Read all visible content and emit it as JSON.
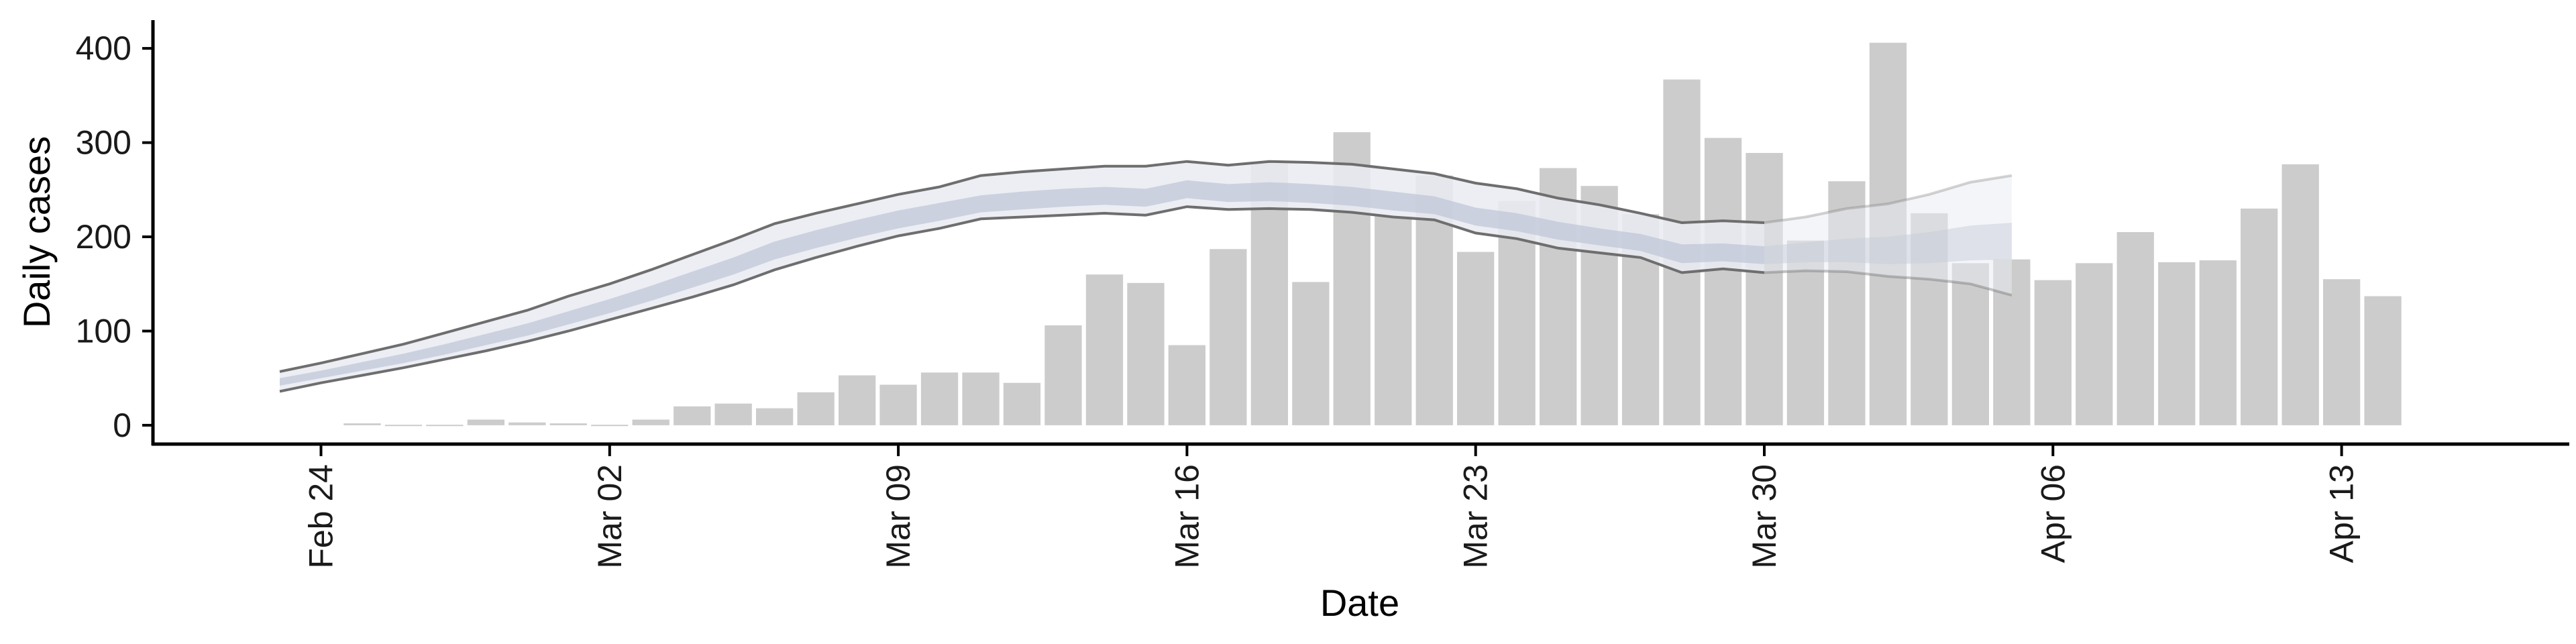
{
  "chart_data": {
    "type": "bar",
    "title": "",
    "xlabel": "Date",
    "ylabel": "Daily cases",
    "ylim": [
      -20,
      430
    ],
    "yticks": [
      0,
      100,
      200,
      300,
      400
    ],
    "x_start_label": "Feb 23",
    "x_end_label": "Apr 18",
    "xticks": [
      {
        "date": "Feb 24",
        "label": "Feb 24"
      },
      {
        "date": "Mar 02",
        "label": "Mar 02"
      },
      {
        "date": "Mar 09",
        "label": "Mar 09"
      },
      {
        "date": "Mar 16",
        "label": "Mar 16"
      },
      {
        "date": "Mar 23",
        "label": "Mar 23"
      },
      {
        "date": "Mar 30",
        "label": "Mar 30"
      },
      {
        "date": "Apr 06",
        "label": "Apr 06"
      },
      {
        "date": "Apr 13",
        "label": "Apr 13"
      }
    ],
    "bars": {
      "color": "#cccccc",
      "dates": [
        "Feb 25",
        "Feb 26",
        "Feb 27",
        "Feb 28",
        "Feb 29",
        "Mar 01",
        "Mar 02",
        "Mar 03",
        "Mar 04",
        "Mar 05",
        "Mar 06",
        "Mar 07",
        "Mar 08",
        "Mar 09",
        "Mar 10",
        "Mar 11",
        "Mar 12",
        "Mar 13",
        "Mar 14",
        "Mar 15",
        "Mar 16",
        "Mar 17",
        "Mar 18",
        "Mar 19",
        "Mar 20",
        "Mar 21",
        "Mar 22",
        "Mar 23",
        "Mar 24",
        "Mar 25",
        "Mar 26",
        "Mar 27",
        "Mar 28",
        "Mar 29",
        "Mar 30",
        "Mar 31",
        "Apr 01",
        "Apr 02",
        "Apr 03",
        "Apr 04",
        "Apr 05",
        "Apr 06",
        "Apr 07",
        "Apr 08",
        "Apr 09",
        "Apr 10",
        "Apr 11",
        "Apr 12",
        "Apr 13",
        "Apr 14"
      ],
      "values": [
        2,
        0,
        0,
        6,
        3,
        2,
        0,
        6,
        20,
        23,
        18,
        35,
        53,
        43,
        56,
        56,
        45,
        106,
        160,
        151,
        85,
        187,
        278,
        152,
        311,
        222,
        265,
        184,
        238,
        273,
        254,
        224,
        367,
        305,
        289,
        196,
        259,
        406,
        225,
        172,
        176,
        154,
        172,
        205,
        173,
        175,
        230,
        277,
        155,
        137
      ]
    },
    "estimate": {
      "dates": [
        "Feb 23",
        "Feb 24",
        "Feb 25",
        "Feb 26",
        "Feb 27",
        "Feb 28",
        "Feb 29",
        "Mar 01",
        "Mar 02",
        "Mar 03",
        "Mar 04",
        "Mar 05",
        "Mar 06",
        "Mar 07",
        "Mar 08",
        "Mar 09",
        "Mar 10",
        "Mar 11",
        "Mar 12",
        "Mar 13",
        "Mar 14",
        "Mar 15",
        "Mar 16",
        "Mar 17",
        "Mar 18",
        "Mar 19",
        "Mar 20",
        "Mar 21",
        "Mar 22",
        "Mar 23",
        "Mar 24",
        "Mar 25",
        "Mar 26",
        "Mar 27",
        "Mar 28",
        "Mar 29",
        "Mar 30",
        "Mar 31",
        "Apr 01",
        "Apr 02",
        "Apr 03",
        "Apr 04",
        "Apr 05"
      ],
      "upper": [
        57,
        66,
        76,
        86,
        98,
        110,
        122,
        137,
        150,
        165,
        181,
        197,
        214,
        225,
        235,
        245,
        253,
        265,
        269,
        272,
        275,
        275,
        280,
        276,
        280,
        279,
        277,
        272,
        267,
        257,
        251,
        241,
        234,
        225,
        215,
        217,
        215,
        221,
        230,
        235,
        245,
        258,
        265
      ],
      "lower": [
        36,
        45,
        53,
        61,
        70,
        79,
        89,
        100,
        112,
        124,
        136,
        149,
        165,
        178,
        190,
        201,
        209,
        219,
        221,
        223,
        225,
        223,
        232,
        229,
        230,
        229,
        226,
        221,
        218,
        204,
        198,
        188,
        183,
        178,
        162,
        166,
        162,
        164,
        163,
        158,
        155,
        150,
        138
      ],
      "inner_upper": [
        50,
        58,
        67,
        76,
        86,
        97,
        108,
        121,
        134,
        148,
        163,
        178,
        195,
        207,
        218,
        228,
        236,
        244,
        248,
        251,
        253,
        251,
        260,
        256,
        258,
        256,
        253,
        248,
        243,
        231,
        225,
        216,
        209,
        203,
        192,
        193,
        190,
        194,
        198,
        200,
        205,
        212,
        215
      ],
      "inner_lower": [
        42,
        50,
        58,
        66,
        75,
        85,
        95,
        107,
        119,
        132,
        146,
        160,
        176,
        188,
        199,
        209,
        217,
        226,
        229,
        232,
        234,
        232,
        241,
        237,
        238,
        236,
        233,
        228,
        224,
        212,
        206,
        197,
        191,
        185,
        172,
        174,
        171,
        173,
        173,
        171,
        172,
        175,
        176
      ],
      "median": [
        46,
        54,
        62,
        71,
        81,
        91,
        101,
        114,
        126,
        140,
        154,
        169,
        185,
        197,
        208,
        218,
        226,
        235,
        238,
        241,
        243,
        241,
        250,
        246,
        248,
        246,
        243,
        238,
        233,
        221,
        215,
        206,
        200,
        194,
        182,
        184,
        180,
        183,
        185,
        185,
        188,
        193,
        195
      ],
      "outer_color": "#e9ebf2",
      "inner_color": "#c3c9da",
      "line_color": "#6e6e6e",
      "projection_start": "Mar 30"
    }
  }
}
